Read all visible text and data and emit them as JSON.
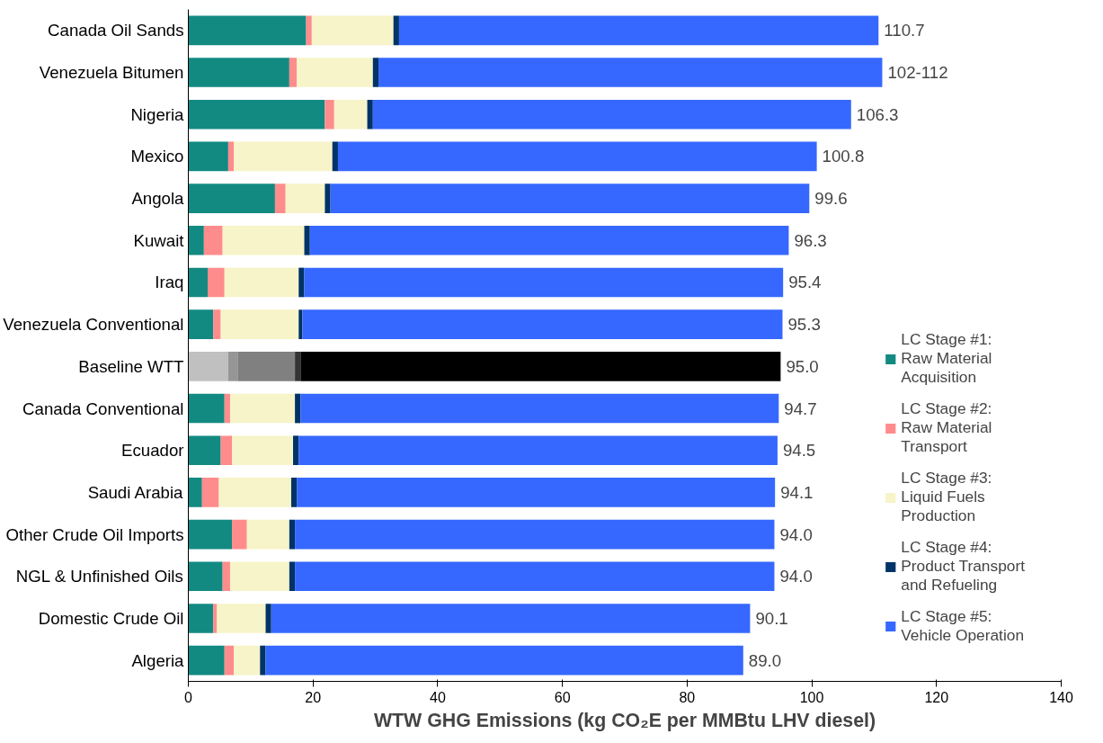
{
  "chart_data": {
    "type": "bar",
    "orientation": "horizontal",
    "stacked": true,
    "categories": [
      "Canada Oil Sands",
      "Venezuela Bitumen",
      "Nigeria",
      "Mexico",
      "Angola",
      "Kuwait",
      "Iraq",
      "Venezuela Conventional",
      "Baseline WTT",
      "Canada Conventional",
      "Ecuador",
      "Saudi Arabia",
      "Other Crude Oil Imports",
      "NGL & Unfinished Oils",
      "Domestic Crude Oil",
      "Algeria"
    ],
    "xlabel": "WTW GHG Emissions (kg CO₂E per MMBtu LHV diesel)",
    "xlim": [
      0,
      140
    ],
    "xticks": [
      0,
      20,
      40,
      60,
      80,
      100,
      120,
      140
    ],
    "grid": false,
    "legend": "right",
    "series": [
      {
        "name": "LC Stage #1: Raw Material Acquisition",
        "color": "#128a82",
        "colors": [
          null,
          null,
          null,
          null,
          null,
          null,
          null,
          null,
          "#c0c0c0",
          null,
          null,
          null,
          null,
          null,
          null,
          null
        ],
        "values": [
          18.9,
          16.2,
          21.9,
          6.4,
          13.9,
          2.5,
          3.1,
          4.0,
          6.4,
          5.8,
          5.2,
          2.2,
          7.0,
          5.5,
          4.0,
          5.8
        ]
      },
      {
        "name": "LC Stage #2: Raw Material Transport",
        "color": "#ff8c8c",
        "colors": [
          null,
          null,
          null,
          null,
          null,
          null,
          null,
          null,
          "#969696",
          null,
          null,
          null,
          null,
          null,
          null,
          null
        ],
        "values": [
          0.9,
          1.2,
          1.5,
          0.9,
          1.7,
          3.0,
          2.7,
          1.2,
          1.5,
          0.9,
          1.8,
          2.7,
          2.4,
          1.2,
          0.6,
          1.5
        ]
      },
      {
        "name": "LC Stage #3: Liquid Fuels Production",
        "color": "#f6f4c8",
        "colors": [
          null,
          null,
          null,
          null,
          null,
          null,
          null,
          null,
          "#808080",
          null,
          null,
          null,
          null,
          null,
          null,
          null
        ],
        "values": [
          13.1,
          12.2,
          5.3,
          15.8,
          6.3,
          13.1,
          11.9,
          12.5,
          9.2,
          10.4,
          9.8,
          11.6,
          6.8,
          9.5,
          7.8,
          4.2
        ]
      },
      {
        "name": "LC Stage #4: Product Transport and Refueling",
        "color": "#003366",
        "colors": [
          null,
          null,
          null,
          null,
          null,
          null,
          null,
          null,
          "#333333",
          null,
          null,
          null,
          null,
          null,
          null,
          null
        ],
        "values": [
          0.9,
          0.9,
          0.9,
          0.9,
          0.9,
          0.9,
          0.9,
          0.6,
          0.9,
          0.9,
          0.9,
          0.9,
          0.9,
          0.9,
          0.9,
          0.9
        ]
      },
      {
        "name": "LC Stage #5: Vehicle Operation",
        "color": "#3668ff",
        "colors": [
          null,
          null,
          null,
          null,
          null,
          null,
          null,
          null,
          "#000000",
          null,
          null,
          null,
          null,
          null,
          null,
          null
        ],
        "values": [
          76.9,
          80.8,
          76.7,
          76.8,
          76.8,
          76.8,
          76.8,
          77.0,
          77.0,
          76.7,
          76.8,
          76.7,
          76.9,
          76.9,
          76.8,
          76.6
        ]
      }
    ],
    "totals": [
      "110.7",
      "102-112",
      "106.3",
      "100.8",
      "99.6",
      "96.3",
      "95.4",
      "95.3",
      "95.0",
      "94.7",
      "94.5",
      "94.1",
      "94.0",
      "94.0",
      "90.1",
      "89.0"
    ]
  }
}
